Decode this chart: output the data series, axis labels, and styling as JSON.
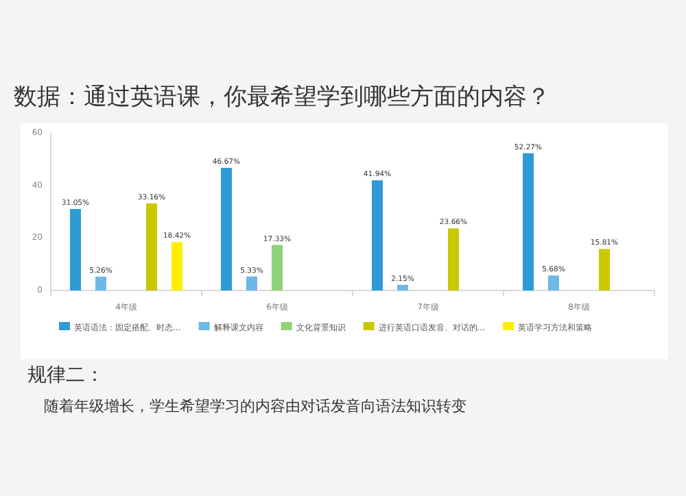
{
  "chart_data": {
    "type": "bar",
    "title": "数据：通过英语课，你最希望学到哪些方面的内容？",
    "categories": [
      "4年级",
      "6年级",
      "7年级",
      "8年级"
    ],
    "series": [
      {
        "name": "英语语法：固定搭配、时态…",
        "color": "#2e9bd6",
        "values": [
          31.05,
          46.67,
          41.94,
          52.27
        ],
        "value_labels": [
          "31.05%",
          "46.67%",
          "41.94%",
          "52.27%"
        ]
      },
      {
        "name": "解释课文内容",
        "color": "#6cb8e6",
        "values": [
          5.26,
          5.33,
          2.15,
          5.68
        ],
        "value_labels": [
          "5.26%",
          "5.33%",
          "2.15%",
          "5.68%"
        ]
      },
      {
        "name": "文化背景知识",
        "color": "#8ed27a",
        "values": [
          null,
          17.33,
          null,
          null
        ],
        "value_labels": [
          null,
          "17.33%",
          null,
          null
        ]
      },
      {
        "name": "进行英语口语发音、对话的…",
        "color": "#c9c800",
        "values": [
          33.16,
          null,
          23.66,
          15.81
        ],
        "value_labels": [
          "33.16%",
          null,
          "23.66%",
          "15.81%"
        ]
      },
      {
        "name": "英语学习方法和策略",
        "color": "#ffee00",
        "values": [
          18.42,
          null,
          null,
          null
        ],
        "value_labels": [
          "18.42%",
          null,
          null,
          null
        ]
      }
    ],
    "ylim": [
      0,
      60
    ],
    "yticks": [
      0,
      20,
      40,
      60
    ],
    "legend": "bottom",
    "annotations": [
      "规律二：",
      "随着年级增长，学生希望学习的内容由对话发音向语法知识转变"
    ]
  }
}
